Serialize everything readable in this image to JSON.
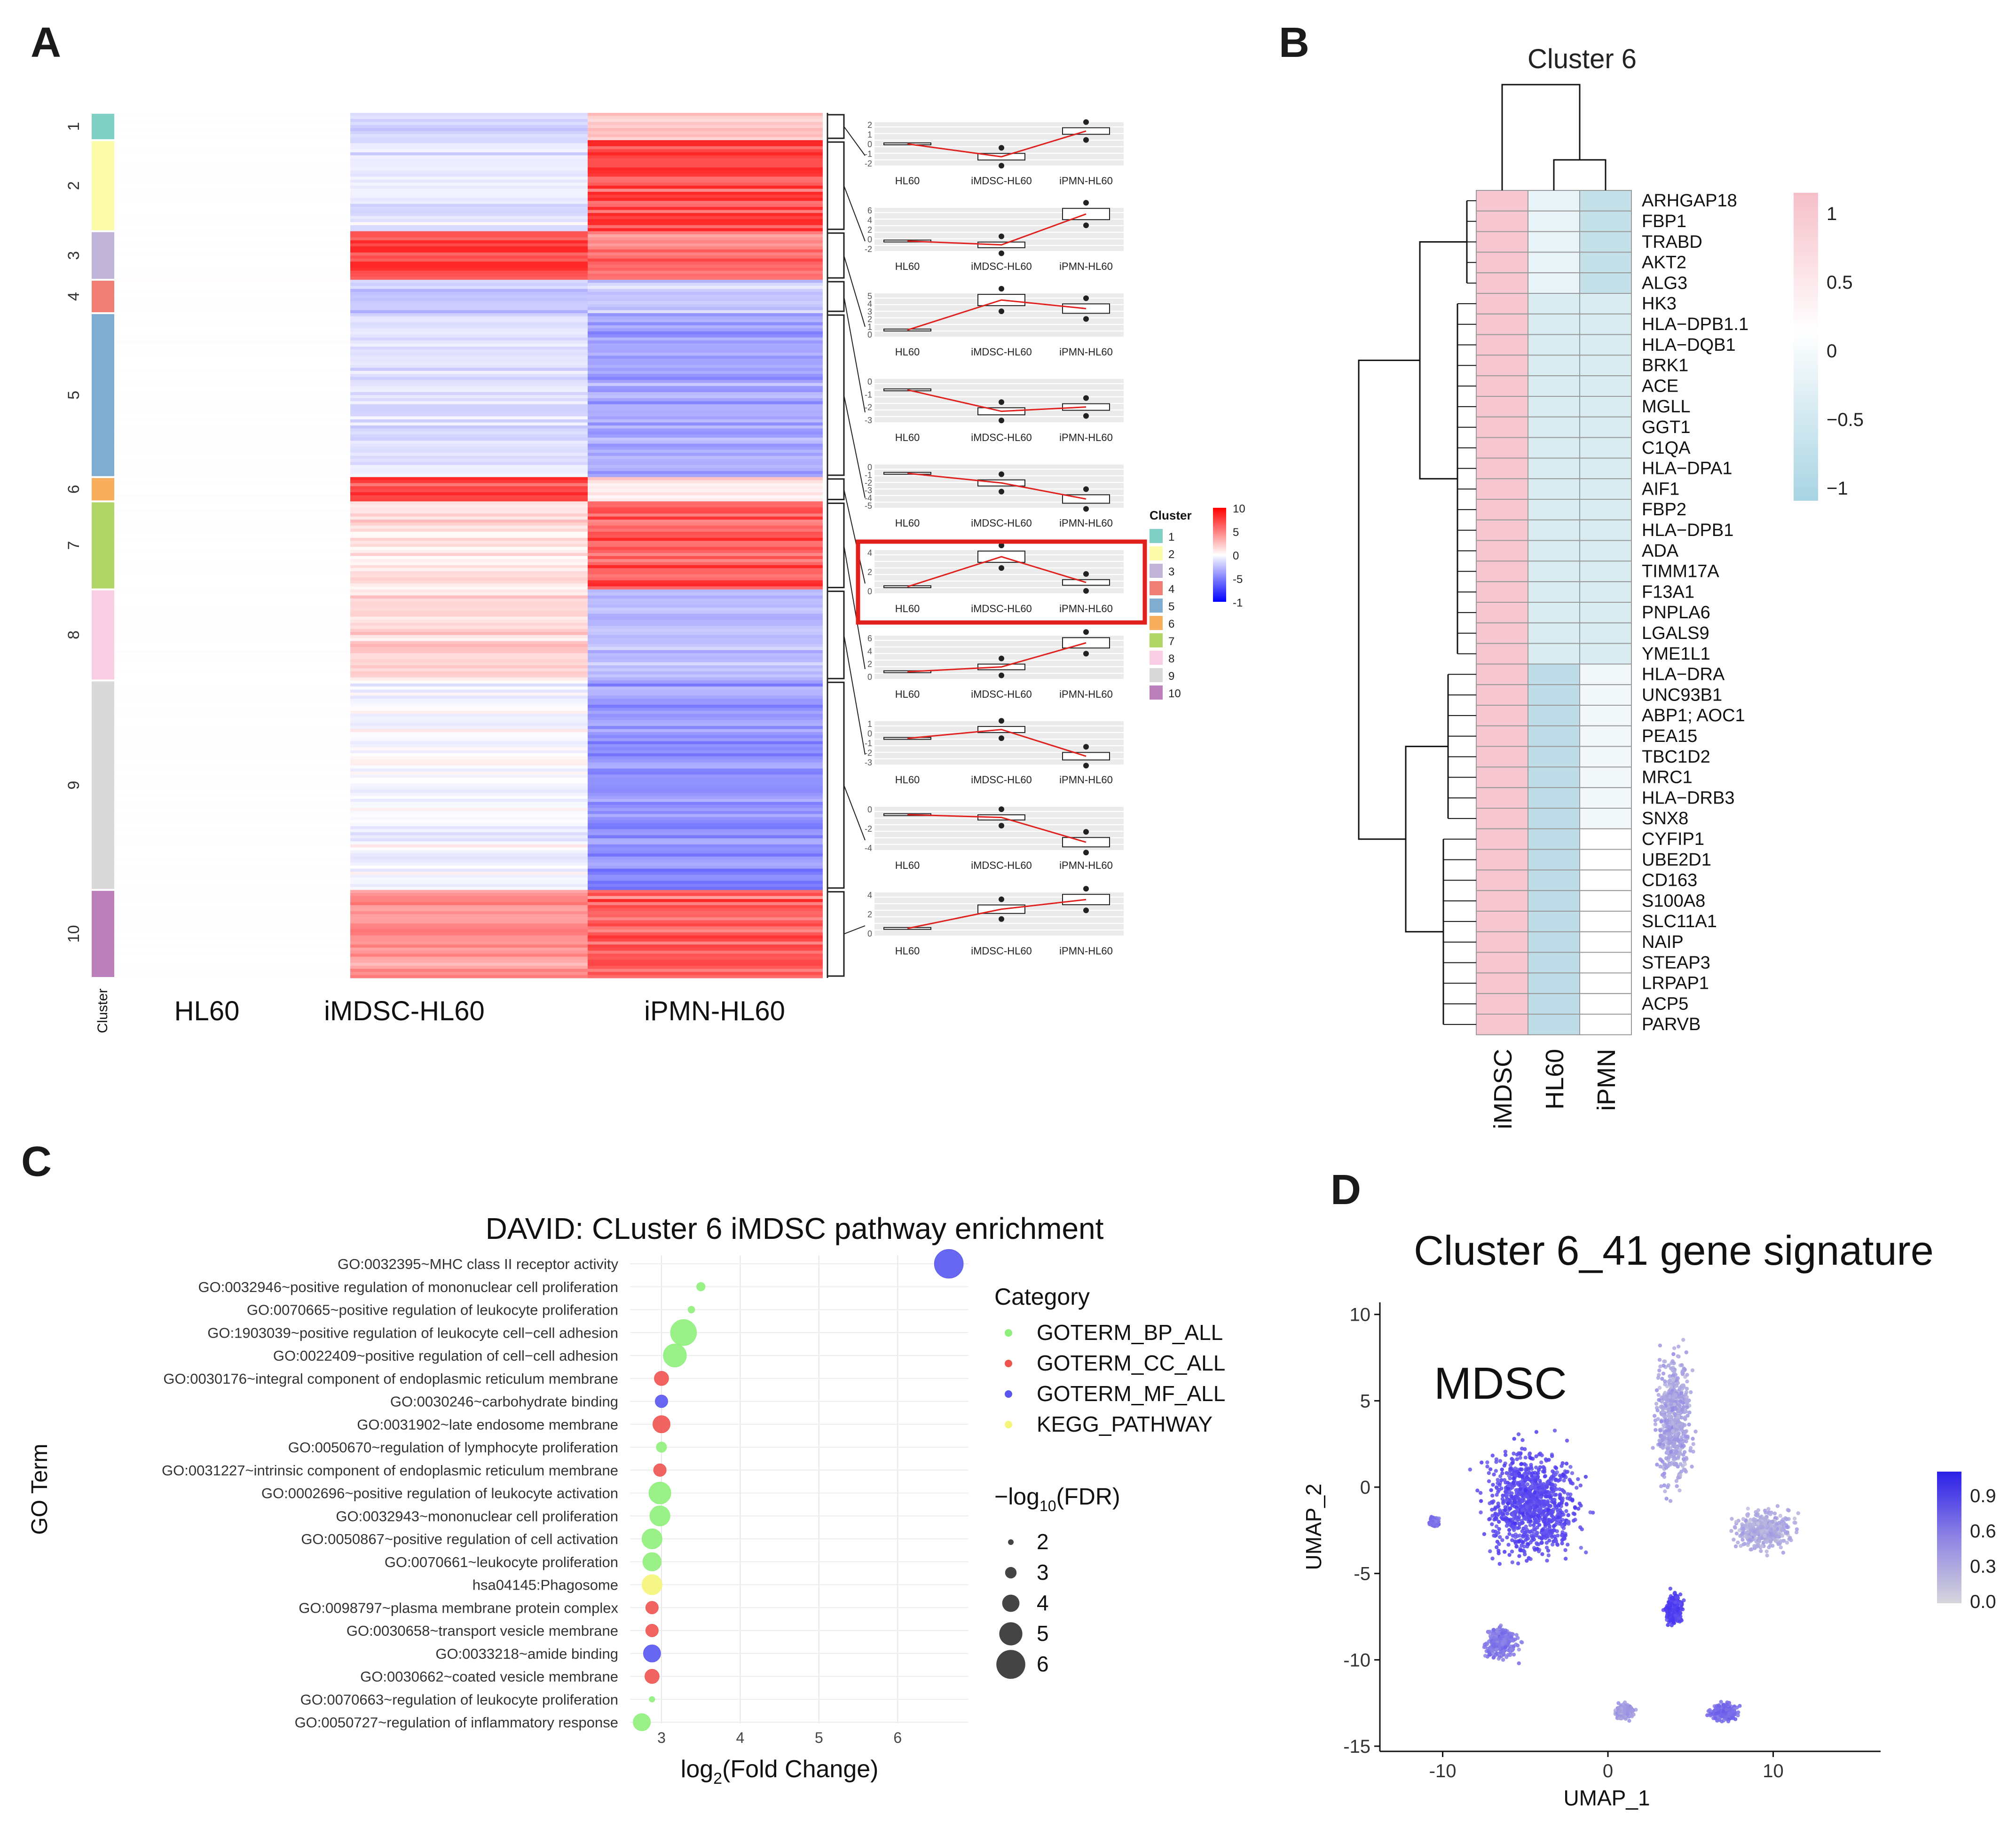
{
  "panels": {
    "a": {
      "letter": "A",
      "clusters": [
        {
          "id": "1",
          "color": "#7fcfc5",
          "rows": 9,
          "values": [
            0,
            -2,
            2
          ]
        },
        {
          "id": "2",
          "color": "#fbfba9",
          "rows": 30,
          "values": [
            0,
            -1,
            7
          ]
        },
        {
          "id": "3",
          "color": "#c0b5d9",
          "rows": 16,
          "values": [
            0,
            7,
            5
          ]
        },
        {
          "id": "4",
          "color": "#f07e74",
          "rows": 11,
          "values": [
            0,
            -2.5,
            -2
          ]
        },
        {
          "id": "5",
          "color": "#7fadd2",
          "rows": 54,
          "values": [
            0,
            -1.5,
            -4
          ]
        },
        {
          "id": "6",
          "color": "#f9ae5d",
          "rows": 8,
          "values": [
            0,
            7,
            1
          ]
        },
        {
          "id": "7",
          "color": "#b1d567",
          "rows": 29,
          "values": [
            0,
            1,
            6
          ]
        },
        {
          "id": "8",
          "color": "#f9cde3",
          "rows": 30,
          "values": [
            0,
            1.5,
            -3
          ]
        },
        {
          "id": "9",
          "color": "#d9d9d9",
          "rows": 69,
          "values": [
            0,
            -0.5,
            -5
          ]
        },
        {
          "id": "10",
          "color": "#bb80bc",
          "rows": 29,
          "values": [
            0,
            4,
            6
          ]
        }
      ],
      "cluster_axis_label": "Cluster",
      "column_labels": [
        "HL60",
        "iMDSC-HL60",
        "iPMN-HL60"
      ],
      "legend_title": "Cluster",
      "color_key": [
        "10",
        "5",
        "0",
        "-5",
        "-1"
      ],
      "boxplot_xlabels": [
        "HL60",
        "iMDSC-HL60",
        "iPMN-HL60"
      ],
      "boxplots": [
        {
          "ticks": [
            "2",
            "1",
            "0",
            "-1",
            "-2"
          ]
        },
        {
          "ticks": [
            "6",
            "4",
            "2",
            "0",
            "-2"
          ]
        },
        {
          "ticks": [
            "5",
            "4",
            "3",
            "2",
            "1",
            "0"
          ]
        },
        {
          "ticks": [
            "0",
            "-1",
            "-2",
            "-3"
          ]
        },
        {
          "ticks": [
            "0",
            "-1",
            "-2",
            "-3",
            "-4",
            "-5"
          ]
        },
        {
          "ticks": [
            "4",
            "2",
            "0"
          ]
        },
        {
          "ticks": [
            "6",
            "4",
            "2",
            "0"
          ]
        },
        {
          "ticks": [
            "1",
            "0",
            "-1",
            "-2",
            "-3"
          ]
        },
        {
          "ticks": [
            "0",
            "-2",
            "-4"
          ]
        },
        {
          "ticks": [
            "4",
            "2",
            "0"
          ]
        }
      ]
    },
    "b": {
      "letter": "B",
      "title": "Cluster 6",
      "genes": [
        "ARHGAP18",
        "FBP1",
        "TRABD",
        "AKT2",
        "ALG3",
        "HK3",
        "HLA−DPB1.1",
        "HLA−DQB1",
        "BRK1",
        "ACE",
        "MGLL",
        "GGT1",
        "C1QA",
        "HLA−DPA1",
        "AIF1",
        "FBP2",
        "HLA−DPB1",
        "ADA",
        "TIMM17A",
        "F13A1",
        "PNPLA6",
        "LGALS9",
        "YME1L1",
        "HLA−DRA",
        "UNC93B1",
        "ABP1; AOC1",
        "PEA15",
        "TBC1D2",
        "MRC1",
        "HLA−DRB3",
        "SNX8",
        "CYFIP1",
        "UBE2D1",
        "CD163",
        "S100A8",
        "SLC11A1",
        "NAIP",
        "STEAP3",
        "LRPAP1",
        "ACP5",
        "PARVB"
      ],
      "columns": [
        "iMDSC",
        "HL60",
        "iPMN"
      ],
      "legend_ticks": [
        "1",
        "0.5",
        "0",
        "−0.5",
        "−1"
      ]
    },
    "c": {
      "letter": "C",
      "title": "DAVID: CLuster 6 iMDSC pathway enrichment",
      "xlabel": "log2(Fold Change)",
      "xlabel_base": "log",
      "xlabel_sub": "2",
      "xlabel_rest": "(Fold Change)",
      "ylabel": "GO Term",
      "legend_category_title": "Category",
      "legend_size_title_prefix": "−log",
      "legend_size_title_sub": "10",
      "legend_size_title_suffix": "(FDR)",
      "legend_size_title": "−log10(FDR)"
    },
    "d": {
      "letter": "D",
      "title": "Cluster 6_41 gene signature",
      "annotation": "MDSC",
      "xlabel": "UMAP_1",
      "ylabel": "UMAP_2",
      "colorbar_ticks": [
        "0.9",
        "0.6",
        "0.3",
        "0.0"
      ]
    }
  },
  "chart_data": [
    {
      "type": "scatter",
      "title": "DAVID: CLuster 6 iMDSC pathway enrichment",
      "xlabel": "log2(Fold Change)",
      "ylabel": "GO Term",
      "xlim": [
        2.6,
        6.9
      ],
      "xticks": [
        3,
        4,
        5,
        6
      ],
      "categories": [
        {
          "name": "GOTERM_BP_ALL",
          "color": "#8ef07a"
        },
        {
          "name": "GOTERM_CC_ALL",
          "color": "#ef5350"
        },
        {
          "name": "GOTERM_MF_ALL",
          "color": "#5757f0"
        },
        {
          "name": "KEGG_PATHWAY",
          "color": "#f5f57a"
        }
      ],
      "size_legend": [
        2,
        3,
        4,
        5,
        6
      ],
      "points": [
        {
          "term": "GO:0032395~MHC class II receptor activity",
          "fold": 6.65,
          "fdr": 6,
          "category": "GOTERM_MF_ALL"
        },
        {
          "term": "GO:0032946~positive regulation of mononuclear cell proliferation",
          "fold": 3.5,
          "fdr": 2.5,
          "category": "GOTERM_BP_ALL"
        },
        {
          "term": "GO:0070665~positive regulation of leukocyte proliferation",
          "fold": 3.38,
          "fdr": 2.2,
          "category": "GOTERM_BP_ALL"
        },
        {
          "term": "GO:1903039~positive regulation of leukocyte cell−cell adhesion",
          "fold": 3.28,
          "fdr": 5.5,
          "category": "GOTERM_BP_ALL"
        },
        {
          "term": "GO:0022409~positive regulation of cell−cell adhesion",
          "fold": 3.17,
          "fdr": 5.0,
          "category": "GOTERM_BP_ALL"
        },
        {
          "term": "GO:0030176~integral component of endoplasmic reticulum membrane",
          "fold": 3.0,
          "fdr": 3.5,
          "category": "GOTERM_CC_ALL"
        },
        {
          "term": "GO:0030246~carbohydrate binding",
          "fold": 3.0,
          "fdr": 3.2,
          "category": "GOTERM_MF_ALL"
        },
        {
          "term": "GO:0031902~late endosome membrane",
          "fold": 3.0,
          "fdr": 4.0,
          "category": "GOTERM_CC_ALL"
        },
        {
          "term": "GO:0050670~regulation of lymphocyte proliferation",
          "fold": 3.0,
          "fdr": 2.8,
          "category": "GOTERM_BP_ALL"
        },
        {
          "term": "GO:0031227~intrinsic component of endoplasmic reticulum membrane",
          "fold": 2.98,
          "fdr": 3.2,
          "category": "GOTERM_CC_ALL"
        },
        {
          "term": "GO:0002696~positive regulation of leukocyte activation",
          "fold": 2.98,
          "fdr": 4.8,
          "category": "GOTERM_BP_ALL"
        },
        {
          "term": "GO:0032943~mononuclear cell proliferation",
          "fold": 2.98,
          "fdr": 4.5,
          "category": "GOTERM_BP_ALL"
        },
        {
          "term": "GO:0050867~positive regulation of cell activation",
          "fold": 2.88,
          "fdr": 4.5,
          "category": "GOTERM_BP_ALL"
        },
        {
          "term": "GO:0070661~leukocyte proliferation",
          "fold": 2.88,
          "fdr": 4.2,
          "category": "GOTERM_BP_ALL"
        },
        {
          "term": "hsa04145:Phagosome",
          "fold": 2.88,
          "fdr": 4.5,
          "category": "KEGG_PATHWAY"
        },
        {
          "term": "GO:0098797~plasma membrane protein complex",
          "fold": 2.88,
          "fdr": 3.2,
          "category": "GOTERM_CC_ALL"
        },
        {
          "term": "GO:0030658~transport vesicle membrane",
          "fold": 2.88,
          "fdr": 3.2,
          "category": "GOTERM_CC_ALL"
        },
        {
          "term": "GO:0033218~amide binding",
          "fold": 2.88,
          "fdr": 4.0,
          "category": "GOTERM_MF_ALL"
        },
        {
          "term": "GO:0030662~coated vesicle membrane",
          "fold": 2.88,
          "fdr": 3.5,
          "category": "GOTERM_CC_ALL"
        },
        {
          "term": "GO:0070663~regulation of leukocyte proliferation",
          "fold": 2.88,
          "fdr": 2.0,
          "category": "GOTERM_BP_ALL"
        },
        {
          "term": "GO:0050727~regulation of inflammatory response",
          "fold": 2.75,
          "fdr": 4.0,
          "category": "GOTERM_BP_ALL"
        }
      ]
    },
    {
      "type": "scatter",
      "title": "Cluster 6_41 gene signature",
      "xlabel": "UMAP_1",
      "ylabel": "UMAP_2",
      "xlim": [
        -13.8,
        16.5
      ],
      "ylim": [
        -15.3,
        10.7
      ],
      "xticks": [
        -10,
        0,
        10
      ],
      "yticks": [
        10,
        5,
        0,
        -5,
        -10,
        -15
      ],
      "colorbar": [
        0.0,
        0.3,
        0.6,
        0.9
      ],
      "clusters": [
        {
          "label": "MDSC",
          "center": [
            -4.5,
            -1.0
          ],
          "spread": [
            3.2,
            3.6
          ],
          "score": 0.85
        },
        {
          "label": "",
          "center": [
            4.0,
            4.0
          ],
          "spread": [
            1.2,
            4.5
          ],
          "score": 0.3
        },
        {
          "label": "",
          "center": [
            9.5,
            -2.5
          ],
          "spread": [
            2.0,
            1.4
          ],
          "score": 0.25
        },
        {
          "label": "",
          "center": [
            4.0,
            -7.0
          ],
          "spread": [
            0.6,
            1.0
          ],
          "score": 0.9
        },
        {
          "label": "",
          "center": [
            -6.5,
            -9.0
          ],
          "spread": [
            1.2,
            1.0
          ],
          "score": 0.55
        },
        {
          "label": "",
          "center": [
            1.0,
            -13.0
          ],
          "spread": [
            0.6,
            0.5
          ],
          "score": 0.35
        },
        {
          "label": "",
          "center": [
            7.0,
            -13.0
          ],
          "spread": [
            0.9,
            0.6
          ],
          "score": 0.65
        },
        {
          "label": "",
          "center": [
            -10.5,
            -2.0
          ],
          "spread": [
            0.3,
            0.3
          ],
          "score": 0.6
        }
      ]
    }
  ]
}
